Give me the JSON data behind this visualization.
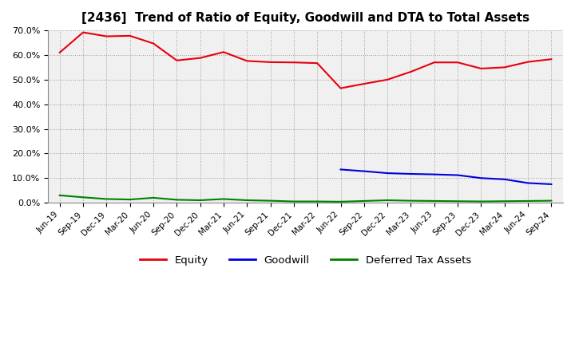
{
  "title": "[2436]  Trend of Ratio of Equity, Goodwill and DTA to Total Assets",
  "x_labels": [
    "Jun-19",
    "Sep-19",
    "Dec-19",
    "Mar-20",
    "Jun-20",
    "Sep-20",
    "Dec-20",
    "Mar-21",
    "Jun-21",
    "Sep-21",
    "Dec-21",
    "Mar-22",
    "Jun-22",
    "Sep-22",
    "Dec-22",
    "Mar-23",
    "Jun-23",
    "Sep-23",
    "Dec-23",
    "Mar-24",
    "Jun-24",
    "Sep-24"
  ],
  "equity": [
    0.61,
    0.692,
    0.676,
    0.678,
    0.647,
    0.578,
    0.588,
    0.612,
    0.576,
    0.571,
    0.57,
    0.567,
    0.465,
    0.483,
    0.5,
    0.532,
    0.57,
    0.57,
    0.545,
    0.55,
    0.572,
    0.583
  ],
  "goodwill": [
    null,
    null,
    null,
    null,
    null,
    null,
    null,
    null,
    null,
    null,
    null,
    null,
    0.135,
    0.128,
    0.12,
    0.117,
    0.115,
    0.112,
    0.1,
    0.095,
    0.08,
    0.075
  ],
  "dta": [
    0.03,
    0.022,
    0.015,
    0.013,
    0.02,
    0.012,
    0.01,
    0.015,
    0.01,
    0.008,
    0.005,
    0.005,
    0.004,
    0.007,
    0.01,
    0.008,
    0.007,
    0.006,
    0.005,
    0.006,
    0.007,
    0.008
  ],
  "equity_color": "#e8000d",
  "goodwill_color": "#0000dd",
  "dta_color": "#008000",
  "ylim_min": 0.0,
  "ylim_max": 0.7,
  "yticks": [
    0.0,
    0.1,
    0.2,
    0.3,
    0.4,
    0.5,
    0.6,
    0.7
  ],
  "bg_color": "#ffffff",
  "plot_bg_color": "#f0f0f0",
  "grid_color": "#888888",
  "legend_labels": [
    "Equity",
    "Goodwill",
    "Deferred Tax Assets"
  ],
  "title_fontsize": 11
}
